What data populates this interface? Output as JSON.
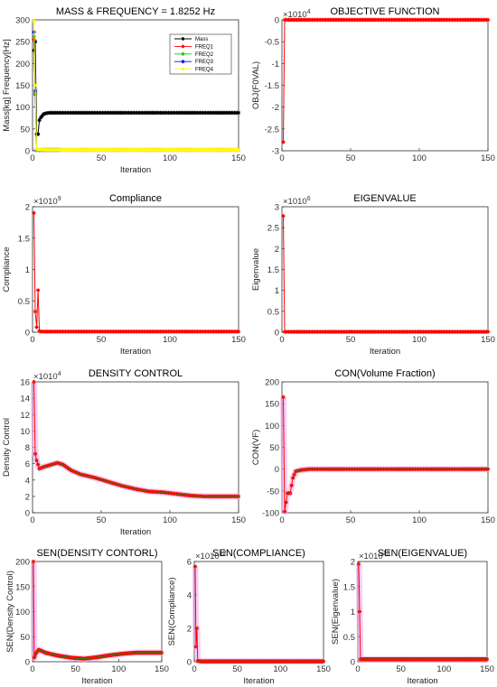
{
  "chart_data": [
    {
      "type": "line",
      "title": "MASS & FREQUENCY = 1.8252 Hz",
      "xlabel": "Iteration",
      "ylabel": "Mass[kg] Frequency[Hz]",
      "xlim": [
        0,
        150
      ],
      "ylim": [
        0,
        300
      ],
      "xticks": [
        "0",
        "50",
        "100",
        "150"
      ],
      "yticks": [
        "0",
        "50",
        "100",
        "150",
        "200",
        "250",
        "300"
      ],
      "legend": {
        "placement": "top-right",
        "entries": [
          "Mass",
          "FREQ1",
          "FREQ2",
          "FREQ3",
          "FREQ4"
        ]
      },
      "series": [
        {
          "name": "Mass",
          "color": "#000000",
          "marker": "star",
          "points": [
            [
              1,
              230
            ],
            [
              2,
              250
            ],
            [
              3,
              38
            ],
            [
              4,
              38
            ],
            [
              5,
              70
            ],
            [
              6,
              76
            ],
            [
              7,
              80
            ],
            [
              8,
              84
            ],
            [
              10,
              86
            ],
            [
              12,
              87
            ],
            [
              15,
              87
            ],
            [
              20,
              87
            ],
            [
              30,
              87
            ],
            [
              50,
              87
            ],
            [
              80,
              87
            ],
            [
              110,
              87
            ],
            [
              150,
              87
            ]
          ]
        },
        {
          "name": "FREQ1",
          "color": "#ff0000",
          "marker": "star",
          "points": [
            [
              1,
              255
            ],
            [
              3,
              3
            ],
            [
              5,
              2
            ],
            [
              10,
              2
            ],
            [
              20,
              2
            ],
            [
              50,
              2
            ],
            [
              100,
              2
            ],
            [
              150,
              2
            ]
          ]
        },
        {
          "name": "FREQ2",
          "color": "#00cc00",
          "marker": "star",
          "points": [
            [
              1,
              262
            ],
            [
              3,
              2
            ],
            [
              8,
              2
            ],
            [
              14,
              2
            ],
            [
              20,
              2
            ]
          ]
        },
        {
          "name": "FREQ3",
          "color": "#0000ff",
          "marker": "star",
          "points": [
            [
              1,
              272
            ],
            [
              3,
              2
            ],
            [
              8,
              2
            ],
            [
              14,
              2
            ],
            [
              20,
              2
            ]
          ]
        },
        {
          "name": "FREQ4",
          "color": "#ffff00",
          "marker": "star",
          "points": [
            [
              1,
              297
            ],
            [
              3,
              3
            ],
            [
              10,
              2
            ],
            [
              30,
              2
            ],
            [
              60,
              2
            ],
            [
              100,
              2
            ],
            [
              150,
              2
            ]
          ]
        }
      ]
    },
    {
      "type": "line",
      "title": "OBJECTIVE FUNCTION",
      "xlabel": "",
      "ylabel": "OBJ(F0VAL)",
      "exponent_label": "×10^4",
      "xlim": [
        0,
        150
      ],
      "ylim": [
        -3,
        0
      ],
      "xticks": [
        "0",
        "50",
        "100",
        "150"
      ],
      "yticks": [
        "-3",
        "-2.5",
        "-2",
        "-1.5",
        "-1",
        "-0.5",
        "0"
      ],
      "series": [
        {
          "name": "",
          "color": "#ff0000",
          "marker": "star",
          "points": [
            [
              1,
              -2.8
            ],
            [
              2,
              0
            ],
            [
              150,
              0
            ]
          ]
        }
      ]
    },
    {
      "type": "line",
      "title": "Compliance",
      "xlabel": "Iteration",
      "ylabel": "Compliance",
      "exponent_label": "×10^9",
      "xlim": [
        0,
        150
      ],
      "ylim": [
        0,
        2
      ],
      "xticks": [
        "0",
        "50",
        "100",
        "150"
      ],
      "yticks": [
        "0",
        "0.5",
        "1",
        "1.5",
        "2"
      ],
      "series": [
        {
          "name": "",
          "color": "#ff0000",
          "marker": "star",
          "points": [
            [
              1,
              1.9
            ],
            [
              2,
              0.33
            ],
            [
              3,
              0.08
            ],
            [
              4,
              0.67
            ],
            [
              5,
              0.02
            ],
            [
              6,
              0.01
            ],
            [
              8,
              0.01
            ],
            [
              150,
              0.01
            ]
          ]
        }
      ]
    },
    {
      "type": "line",
      "title": "EIGENVALUE",
      "xlabel": "Iteration",
      "ylabel": "Eigenvalue",
      "exponent_label": "×10^6",
      "xlim": [
        0,
        150
      ],
      "ylim": [
        0,
        3
      ],
      "xticks": [
        "0",
        "50",
        "100",
        "150"
      ],
      "yticks": [
        "0",
        "0.5",
        "1",
        "1.5",
        "2",
        "2.5",
        "3"
      ],
      "series": [
        {
          "name": "",
          "color": "#ff0000",
          "marker": "star",
          "points": [
            [
              1,
              2.78
            ],
            [
              2,
              0.01
            ],
            [
              150,
              0.01
            ]
          ]
        }
      ]
    },
    {
      "type": "line",
      "title": "DENSITY CONTROL",
      "xlabel": "Iteration",
      "ylabel": "Density Control",
      "exponent_label": "×10^4",
      "xlim": [
        0,
        150
      ],
      "ylim": [
        0,
        16
      ],
      "xticks": [
        "0",
        "50",
        "100",
        "150"
      ],
      "yticks": [
        "0",
        "2",
        "4",
        "6",
        "8",
        "10",
        "12",
        "14",
        "16"
      ],
      "series": [
        {
          "name": "",
          "color": "#ff0000",
          "marker": "star",
          "points": [
            [
              1,
              16
            ],
            [
              2,
              7.2
            ],
            [
              3,
              6.4
            ],
            [
              5,
              5.4
            ],
            [
              8,
              5.6
            ],
            [
              12,
              5.8
            ],
            [
              18,
              6.1
            ],
            [
              22,
              5.9
            ],
            [
              28,
              5.2
            ],
            [
              35,
              4.7
            ],
            [
              45,
              4.3
            ],
            [
              55,
              3.8
            ],
            [
              65,
              3.3
            ],
            [
              75,
              2.9
            ],
            [
              85,
              2.6
            ],
            [
              95,
              2.5
            ],
            [
              105,
              2.3
            ],
            [
              115,
              2.1
            ],
            [
              125,
              2.0
            ],
            [
              140,
              2.0
            ],
            [
              150,
              2.0
            ]
          ]
        }
      ]
    },
    {
      "type": "line",
      "title": "CON(Volume Fraction)",
      "xlabel": "",
      "ylabel": "CON(VF)",
      "xlim": [
        0,
        150
      ],
      "ylim": [
        -100,
        200
      ],
      "xticks": [
        "0",
        "50",
        "100",
        "150"
      ],
      "yticks": [
        "-100",
        "-50",
        "0",
        "50",
        "100",
        "150",
        "200"
      ],
      "series": [
        {
          "name": "",
          "color": "#ff0000",
          "marker": "star",
          "points": [
            [
              1,
              165
            ],
            [
              2,
              -97
            ],
            [
              4,
              -55
            ],
            [
              6,
              -55
            ],
            [
              8,
              -20
            ],
            [
              10,
              -5
            ],
            [
              14,
              -2
            ],
            [
              20,
              0
            ],
            [
              40,
              0
            ],
            [
              80,
              0
            ],
            [
              120,
              0
            ],
            [
              150,
              0
            ]
          ]
        }
      ]
    },
    {
      "type": "line",
      "title": "SEN(DENSITY CONTORL)",
      "xlabel": "Iteration",
      "ylabel": "SEN(Density Control)",
      "xlim": [
        0,
        150
      ],
      "ylim": [
        0,
        200
      ],
      "xticks": [
        "0",
        "50",
        "100",
        "150"
      ],
      "yticks": [
        "0",
        "50",
        "100",
        "150",
        "200"
      ],
      "series": [
        {
          "name": "",
          "color": "#ff0000",
          "marker": "star",
          "points": [
            [
              1,
              200
            ],
            [
              2,
              8
            ],
            [
              4,
              17
            ],
            [
              7,
              24
            ],
            [
              10,
              22
            ],
            [
              15,
              18
            ],
            [
              22,
              15
            ],
            [
              30,
              12
            ],
            [
              45,
              8
            ],
            [
              60,
              6
            ],
            [
              75,
              9
            ],
            [
              90,
              13
            ],
            [
              105,
              16
            ],
            [
              120,
              18
            ],
            [
              135,
              18
            ],
            [
              150,
              18
            ]
          ]
        }
      ]
    },
    {
      "type": "line",
      "title": "SEN(COMPLIANCE)",
      "xlabel": "Iteration",
      "ylabel": "SEN(Compliance)",
      "exponent_label": "×10^12",
      "xlim": [
        0,
        150
      ],
      "ylim": [
        0,
        6
      ],
      "xticks": [
        "0",
        "50",
        "100",
        "150"
      ],
      "yticks": [
        "0",
        "2",
        "4",
        "6"
      ],
      "series": [
        {
          "name": "",
          "color": "#ff0000",
          "marker": "star",
          "points": [
            [
              1,
              5.7
            ],
            [
              2,
              0.9
            ],
            [
              3,
              2.0
            ],
            [
              4,
              0.05
            ],
            [
              8,
              0.02
            ],
            [
              150,
              0.02
            ]
          ]
        }
      ]
    },
    {
      "type": "line",
      "title": "SEN(EIGENVALUE)",
      "xlabel": "Iteration",
      "ylabel": "SEN(Eigenvalue)",
      "exponent_label": "×10^13",
      "xlim": [
        0,
        150
      ],
      "ylim": [
        0,
        2
      ],
      "xticks": [
        "0",
        "50",
        "100",
        "150"
      ],
      "yticks": [
        "0",
        "0.5",
        "1",
        "1.5",
        "2"
      ],
      "series": [
        {
          "name": "",
          "color": "#ff0000",
          "marker": "star",
          "points": [
            [
              1,
              1.95
            ],
            [
              3,
              0.05
            ],
            [
              150,
              0.05
            ]
          ]
        }
      ]
    }
  ]
}
